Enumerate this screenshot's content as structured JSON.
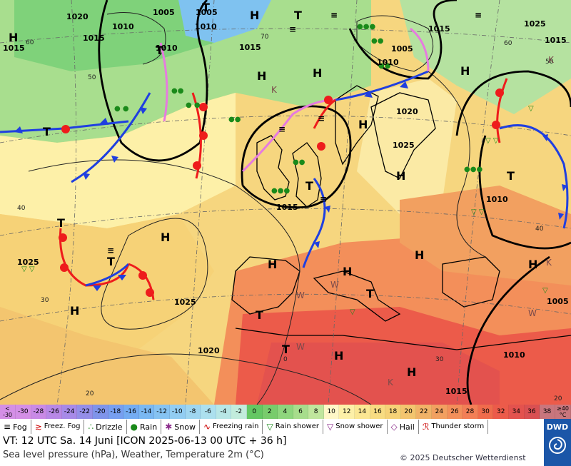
{
  "map": {
    "pressure_labels": [
      "1020",
      "1005",
      "1005",
      "1010",
      "1010",
      "1015",
      "1015",
      "1010",
      "1015",
      "1025",
      "1015",
      "1005",
      "1010",
      "1015",
      "1020",
      "1025",
      "1015",
      "1010",
      "1025",
      "1025",
      "1020",
      "1005",
      "1010",
      "1015",
      "1025"
    ],
    "highs": [
      "H",
      "H",
      "H",
      "H",
      "H",
      "H",
      "H",
      "H",
      "H",
      "H",
      "H",
      "H",
      "H",
      "H",
      "H"
    ],
    "lows": [
      "T",
      "T",
      "T",
      "T",
      "T",
      "T",
      "T",
      "T",
      "T",
      "T",
      "T"
    ],
    "lat_labels": [
      "60",
      "50",
      "40",
      "30",
      "20",
      "70",
      "60",
      "50",
      "40",
      "30",
      "20",
      "0"
    ],
    "weather_letters": [
      "W",
      "W",
      "W",
      "W",
      "K",
      "K",
      "K",
      "K"
    ],
    "colors": {
      "ocean_warm": "#f5d98a",
      "green_cold": "#8ed67d",
      "hot": "#f26b4c",
      "front_cold": "#1f3fe0",
      "front_warm": "#ee1c1c",
      "front_occluded": "#e67bdf"
    }
  },
  "scale": {
    "left_label": [
      "<",
      "-30"
    ],
    "right_label": [
      "≥40",
      "°C"
    ],
    "steps": [
      {
        "v": "-30",
        "c": "#d48fe6"
      },
      {
        "v": "-28",
        "c": "#c98ae6"
      },
      {
        "v": "-26",
        "c": "#b888e6"
      },
      {
        "v": "-24",
        "c": "#a78ae8"
      },
      {
        "v": "-22",
        "c": "#948ee8"
      },
      {
        "v": "-20",
        "c": "#7f94ea"
      },
      {
        "v": "-18",
        "c": "#779ff0"
      },
      {
        "v": "-16",
        "c": "#74acf2"
      },
      {
        "v": "-14",
        "c": "#7ab8f2"
      },
      {
        "v": "-12",
        "c": "#86c3f2"
      },
      {
        "v": "-10",
        "c": "#92cdf2"
      },
      {
        "v": "-8",
        "c": "#9fd6f0"
      },
      {
        "v": "-6",
        "c": "#ace0ee"
      },
      {
        "v": "-4",
        "c": "#b8e7e6"
      },
      {
        "v": "-2",
        "c": "#c2ecdc"
      },
      {
        "v": "0",
        "c": "#64c763"
      },
      {
        "v": "2",
        "c": "#78cc6c"
      },
      {
        "v": "4",
        "c": "#8ed67d"
      },
      {
        "v": "6",
        "c": "#a7dd8c"
      },
      {
        "v": "8",
        "c": "#c0e69d"
      },
      {
        "v": "10",
        "c": "#fff7c7"
      },
      {
        "v": "12",
        "c": "#fdf0a8"
      },
      {
        "v": "14",
        "c": "#fbe793"
      },
      {
        "v": "16",
        "c": "#f8dc82"
      },
      {
        "v": "18",
        "c": "#f6d277"
      },
      {
        "v": "20",
        "c": "#f3c56f"
      },
      {
        "v": "22",
        "c": "#f1b267"
      },
      {
        "v": "24",
        "c": "#f2a060"
      },
      {
        "v": "26",
        "c": "#f38f5a"
      },
      {
        "v": "28",
        "c": "#f37f56"
      },
      {
        "v": "30",
        "c": "#f06b4c"
      },
      {
        "v": "32",
        "c": "#ec5b4a"
      },
      {
        "v": "34",
        "c": "#e3524e"
      },
      {
        "v": "36",
        "c": "#d95052"
      },
      {
        "v": "38",
        "c": "#c9767d"
      }
    ]
  },
  "legend": {
    "items": [
      {
        "sym": "≡",
        "label": "Fog",
        "color": "#000"
      },
      {
        "sym": "≳",
        "label": "Freez. Fog",
        "color": "#c00"
      },
      {
        "sym": "∴",
        "label": "Drizzle",
        "color": "#1a8a1a"
      },
      {
        "sym": "●",
        "label": "Rain",
        "color": "#1a8a1a"
      },
      {
        "sym": "✱",
        "label": "Snow",
        "color": "#8a2a8a"
      },
      {
        "sym": "∿",
        "label": "Freezing rain",
        "color": "#c00"
      },
      {
        "sym": "▽",
        "label": "Rain shower",
        "color": "#1a8a1a"
      },
      {
        "sym": "▽",
        "label": "Snow shower",
        "color": "#8a2a8a"
      },
      {
        "sym": "◇",
        "label": "Hail",
        "color": "#8a2a8a"
      },
      {
        "sym": "ℛ",
        "label": "Thunder storm",
        "color": "#c00"
      }
    ]
  },
  "footer": {
    "valid_time": "VT: 12 UTC Sa.  14 Juni [ICON 2025-06-13  00 UTC + 36 h]",
    "subtitle": "Sea level pressure (hPa), Weather, Temperature 2m (°C)",
    "copyright": "© 2025 Deutscher Wetterdienst"
  },
  "logo": {
    "text": "DWD"
  }
}
